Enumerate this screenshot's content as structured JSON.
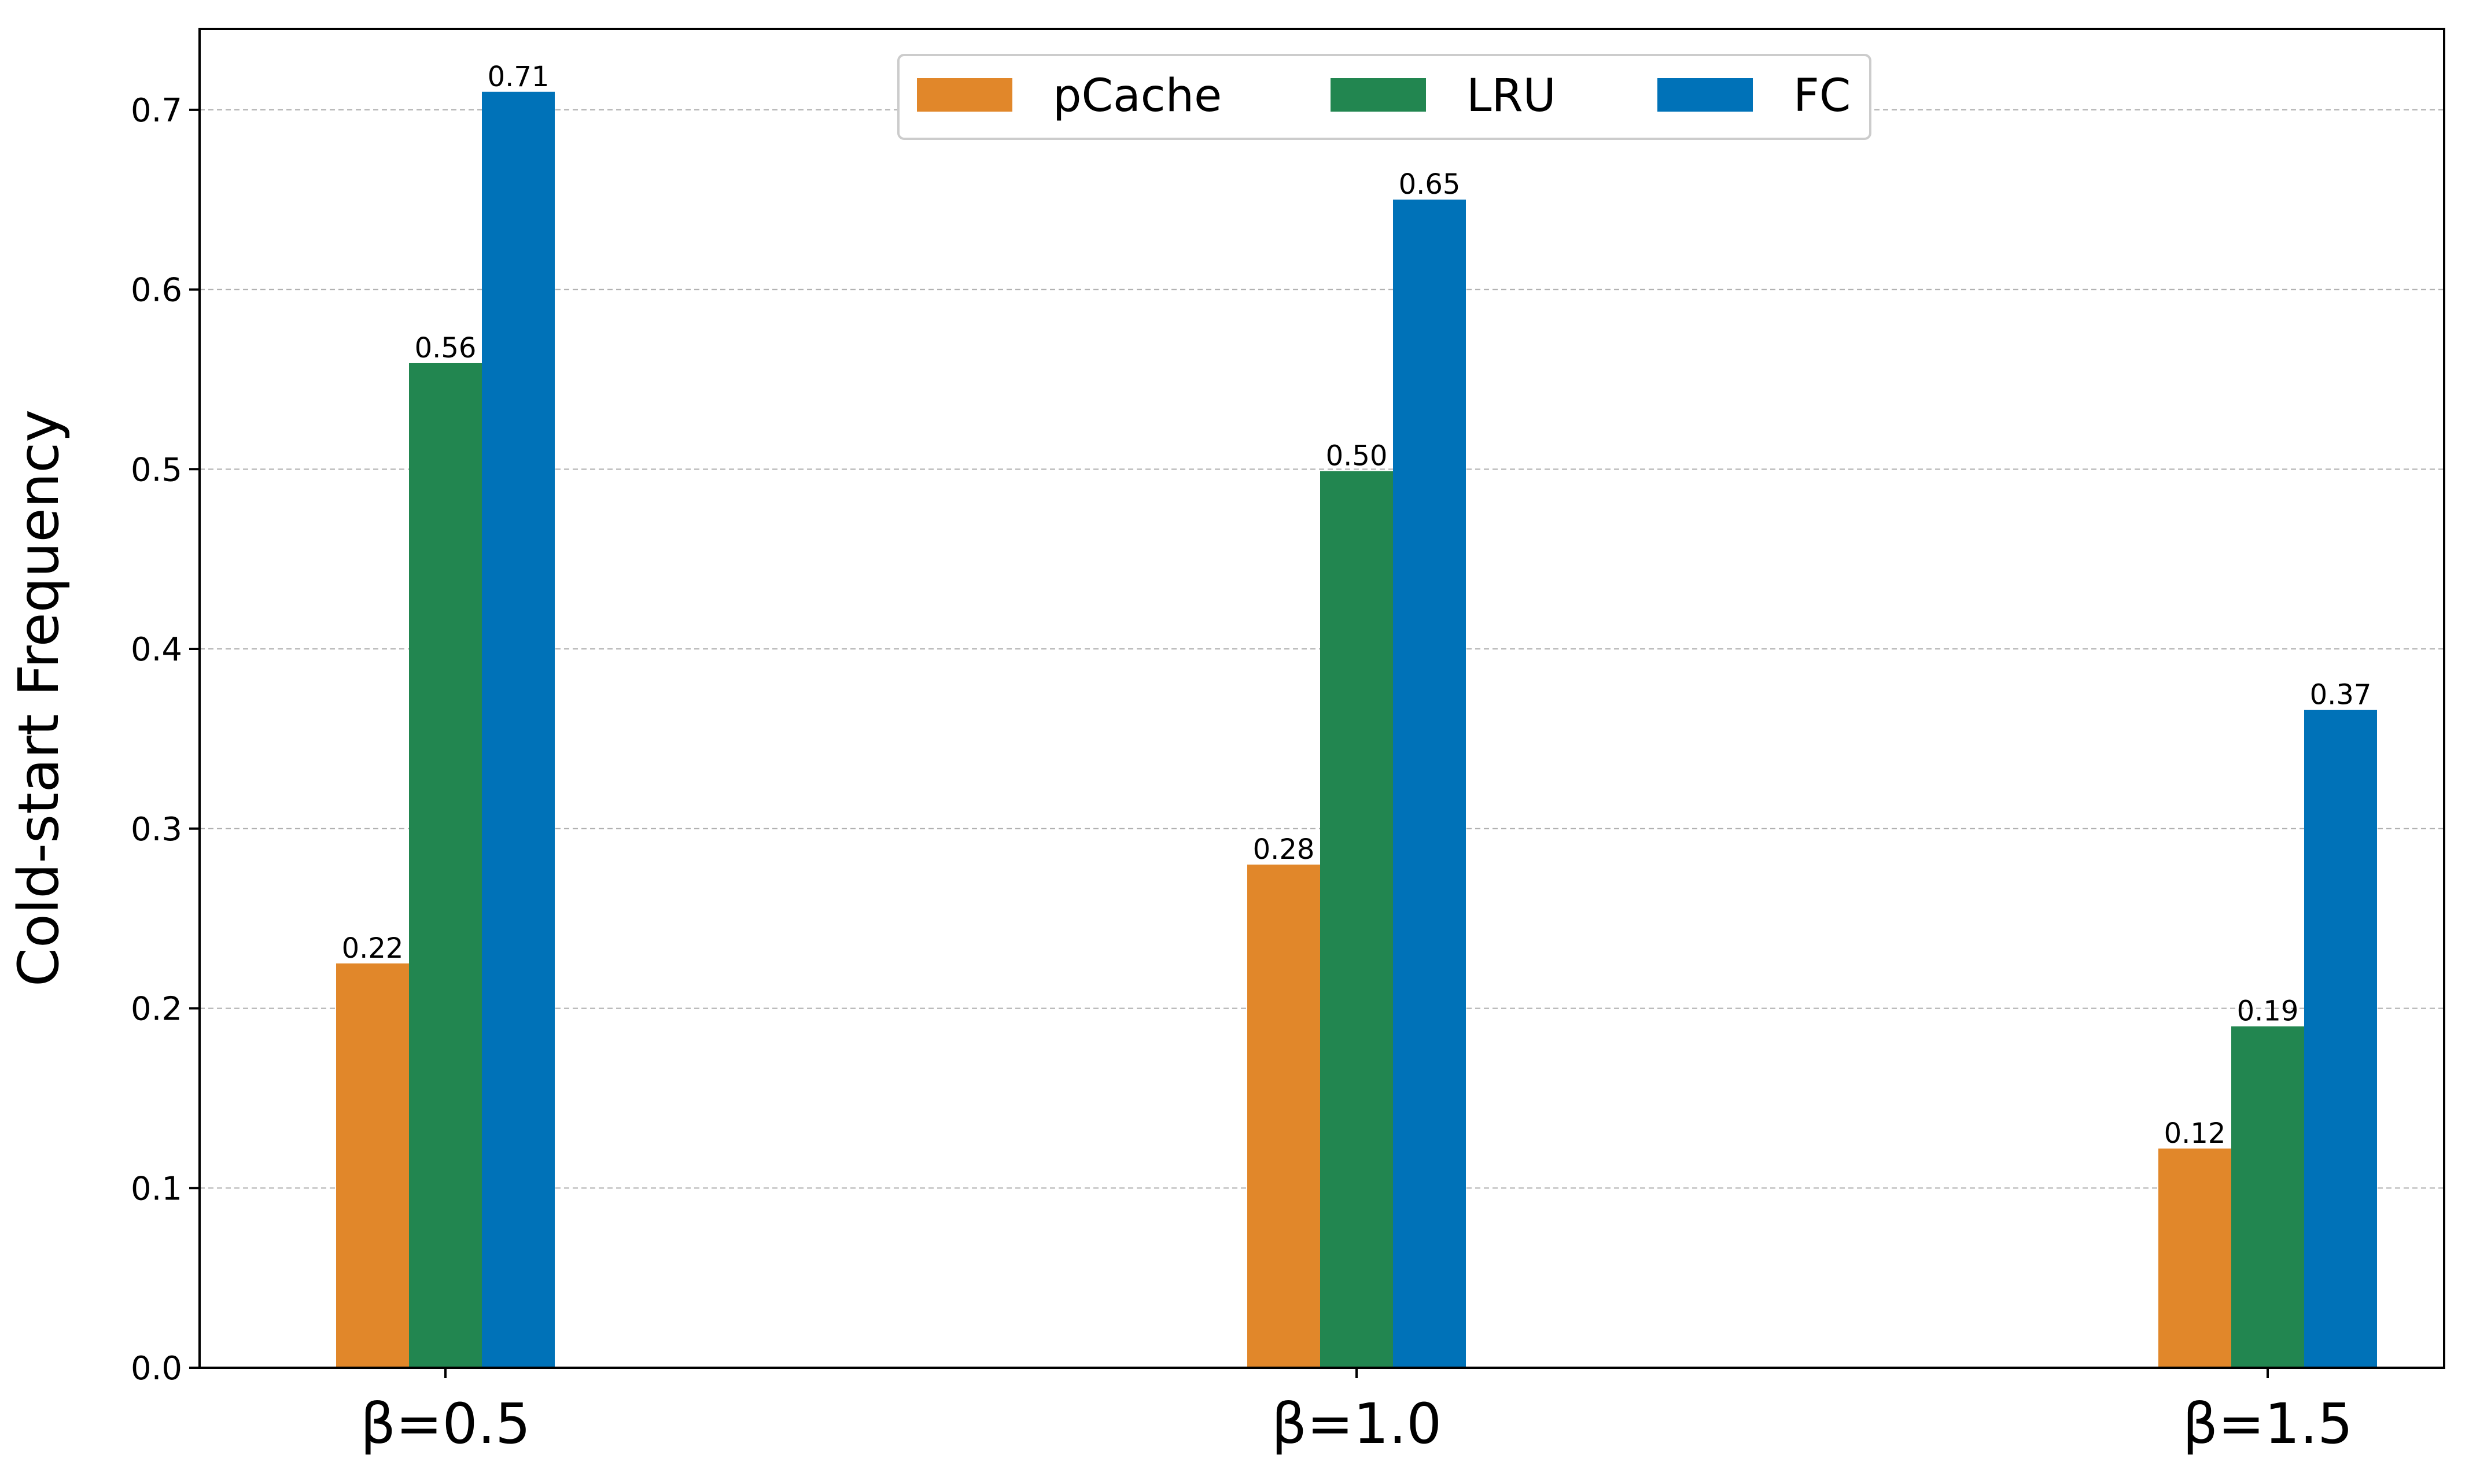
{
  "chart_data": {
    "type": "bar",
    "title": "",
    "xlabel": "",
    "ylabel": "Cold-start Frequency",
    "categories": [
      "β=0.5",
      "β=1.0",
      "β=1.5"
    ],
    "series": [
      {
        "name": "pCache",
        "color": "#e1872a",
        "values": [
          0.225,
          0.28,
          0.122
        ],
        "labels": [
          "0.22",
          "0.28",
          "0.12"
        ]
      },
      {
        "name": "LRU",
        "color": "#228650",
        "values": [
          0.559,
          0.499,
          0.19
        ],
        "labels": [
          "0.56",
          "0.50",
          "0.19"
        ]
      },
      {
        "name": "FC",
        "color": "#0072b8",
        "values": [
          0.71,
          0.65,
          0.366
        ],
        "labels": [
          "0.71",
          "0.65",
          "0.37"
        ]
      }
    ],
    "ylim": [
      0,
      0.745
    ],
    "yticks": [
      0.0,
      0.1,
      0.2,
      0.3,
      0.4,
      0.5,
      0.6,
      0.7
    ],
    "ytick_labels": [
      "0.0",
      "0.1",
      "0.2",
      "0.3",
      "0.4",
      "0.5",
      "0.6",
      "0.7"
    ],
    "grid": "horizontal-dashed",
    "legend_position": "top-center"
  }
}
